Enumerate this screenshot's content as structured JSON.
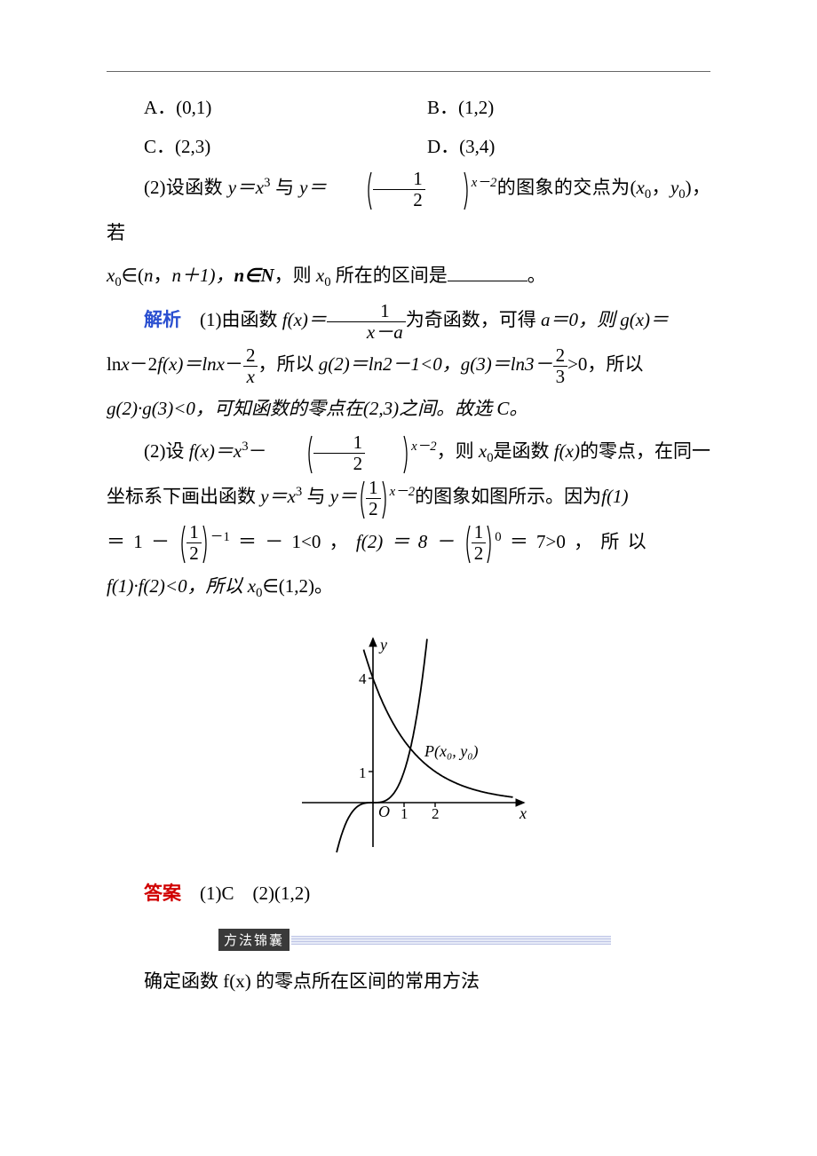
{
  "options": {
    "A": "A．(0,1)",
    "B": "B．(1,2)",
    "C": "C．(2,3)",
    "D": "D．(3,4)"
  },
  "q2": {
    "prefix": "(2)设函数 ",
    "y_eq_x3": "y＝x",
    "x3_sup": "3",
    "and": " 与 ",
    "y_eq": "y＝",
    "half_num": "1",
    "half_den": "2",
    "exp": "x－2",
    "mid1": "的图象的交点为(",
    "x0": "x",
    "x0_sub": "0",
    "comma_y0": "，",
    "y0": "y",
    "y0_sub": "0",
    "mid2": ")，若",
    "line2a": "x",
    "line2a_sub": "0",
    "line2b": "∈(",
    "line2_n": "n",
    "line2c": "，",
    "line2_n1": "n＋1)，",
    "line2_nset": "n∈N",
    "line2d": "，则 ",
    "line2_x0": "x",
    "line2_x0_sub": "0",
    "line2e": " 所在的区间是",
    "period": "。"
  },
  "sol": {
    "label": "解析",
    "p1a": "(1)由函数 ",
    "fx": "f(x)＝",
    "frac1_num": "1",
    "frac1_den": "x－a",
    "p1b": "为奇函数，可得 ",
    "a0": "a＝0，则 ",
    "gx": "g(x)＝",
    "p2a": "ln",
    "p2x": "x",
    "p2b": "－2",
    "p2fx": "f(x)＝ln",
    "p2c": "－",
    "frac2_num": "2",
    "frac2_den": "x",
    "p2d": "，所以 ",
    "g2": "g(2)＝ln2－1<0，",
    "g3a": "g(3)＝ln3－",
    "frac3_num": "2",
    "frac3_den": "3",
    "g3b": ">0，所以",
    "p3": "g(2)·g(3)<0，可知函数的零点在(2,3)之间。故选 C。",
    "p4a": "(2)设 ",
    "p4fx": "f(x)＝x",
    "p4sup3": "3",
    "p4b": "－",
    "p4c": "，则 ",
    "p4x0": "x",
    "p4x0sub": "0",
    "p4d": "是函数 ",
    "p4fx2": "f(x)",
    "p4e": "的零点，在同一",
    "p5a": "坐标系下画出函数 ",
    "p5y1": "y＝x",
    "p5b": " 与 ",
    "p5y2": "y＝",
    "p5c": "的图象如图所示。因为",
    "p5f1": "f(1)",
    "p6a": "＝ 1 －",
    "p6exp": "－1",
    "p6b": "＝ － 1<0 ，",
    "p6f2": "f(2) ＝ 8 －",
    "p6exp0": "0",
    "p6c": "＝ 7>0 ， 所 以",
    "p7": "f(1)·f(2)<0，所以 x",
    "p7sub": "0",
    "p7b": "∈(1,2)。"
  },
  "graph": {
    "xlabel": "x",
    "ylabel": "y",
    "origin": "O",
    "tick1": "1",
    "tick2": "2",
    "tick4": "4",
    "point_label": "P(x₀, y₀)",
    "x_range": [
      -1.5,
      4
    ],
    "y_range": [
      -1.5,
      5
    ],
    "cubic_color": "#000000",
    "exp_color": "#000000",
    "axis_color": "#000000",
    "line_width": 1.6
  },
  "answer": {
    "label": "答案",
    "text": "(1)C　(2)(1,2)"
  },
  "method": {
    "badge": "方法锦囊",
    "line": "确定函数 f(x) 的零点所在区间的常用方法"
  }
}
